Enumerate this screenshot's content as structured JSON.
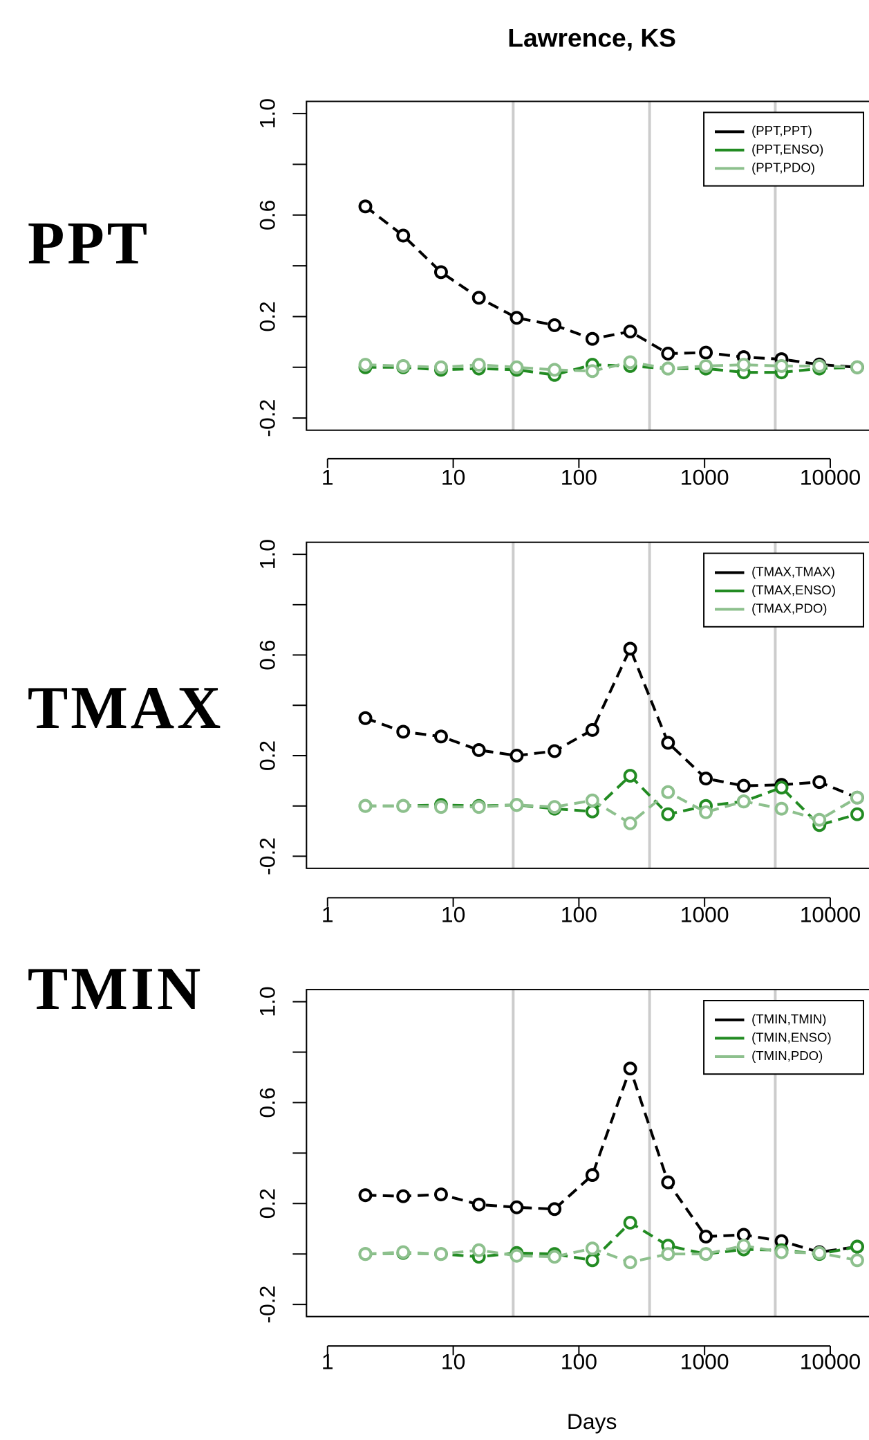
{
  "title": "Lawrence, KS",
  "x_label": "Days",
  "chart_data": [
    {
      "type": "line",
      "row_label": "PPT",
      "log_x": true,
      "legend": "topright",
      "x": [
        2,
        4,
        8,
        16,
        32,
        64,
        128,
        256,
        512,
        1024,
        2048,
        4096,
        8192,
        16384
      ],
      "xlim": [
        0.68,
        25300
      ],
      "xticks": [
        1,
        10,
        100,
        1000,
        10000
      ],
      "vlines": [
        30,
        365,
        3650
      ],
      "vline_color": "#cccccc",
      "ylim": [
        -0.248,
        1.048
      ],
      "yticks": [
        -0.2,
        0.2,
        0.6,
        {
          "value": 1,
          "label": "1.0"
        }
      ],
      "yticks_minor": [
        0,
        0.4,
        0.8
      ],
      "series": [
        {
          "name": "(PPT,PPT)",
          "color": "#000000",
          "values": [
            0.634,
            0.519,
            0.375,
            0.274,
            0.195,
            0.166,
            0.112,
            0.141,
            0.054,
            0.058,
            0.04,
            0.032,
            0.011,
            0
          ]
        },
        {
          "name": "(PPT,ENSO)",
          "color": "#228b22",
          "values": [
            0,
            0,
            -0.01,
            -0.005,
            -0.01,
            -0.03,
            0.01,
            0.005,
            -0.005,
            -0.005,
            -0.02,
            -0.02,
            -0.005,
            0
          ]
        },
        {
          "name": "(PPT,PDO)",
          "color": "#8dc08d",
          "values": [
            0.01,
            0.005,
            0,
            0.01,
            0,
            -0.01,
            -0.015,
            0.02,
            -0.005,
            0.005,
            0.01,
            0.005,
            0.005,
            0
          ]
        }
      ]
    },
    {
      "type": "line",
      "row_label": "TMAX",
      "log_x": true,
      "legend": "topright",
      "x": [
        2,
        4,
        8,
        16,
        32,
        64,
        128,
        256,
        512,
        1024,
        2048,
        4096,
        8192,
        16384
      ],
      "xlim": [
        0.68,
        25300
      ],
      "xticks": [
        1,
        10,
        100,
        1000,
        10000
      ],
      "vlines": [
        30,
        365,
        3650
      ],
      "vline_color": "#cccccc",
      "ylim": [
        -0.248,
        1.048
      ],
      "yticks": [
        -0.2,
        0.2,
        0.6,
        {
          "value": 1,
          "label": "1.0"
        }
      ],
      "yticks_minor": [
        0,
        0.4,
        0.8
      ],
      "series": [
        {
          "name": "(TMAX,TMAX)",
          "color": "#000000",
          "values": [
            0.349,
            0.295,
            0.276,
            0.222,
            0.2,
            0.218,
            0.302,
            0.625,
            0.251,
            0.109,
            0.08,
            0.084,
            0.095,
            0.033
          ]
        },
        {
          "name": "(TMAX,ENSO)",
          "color": "#228b22",
          "values": [
            0,
            0,
            0.004,
            0,
            0.004,
            -0.011,
            -0.022,
            0.12,
            -0.033,
            0,
            0.018,
            0.073,
            -0.076,
            -0.033
          ]
        },
        {
          "name": "(TMAX,PDO)",
          "color": "#8dc08d",
          "values": [
            0,
            0,
            -0.004,
            -0.004,
            0.004,
            -0.004,
            0.022,
            -0.069,
            0.055,
            -0.025,
            0.018,
            -0.011,
            -0.055,
            0.033
          ]
        }
      ]
    },
    {
      "type": "line",
      "row_label": "TMIN",
      "log_x": true,
      "legend": "topright",
      "x": [
        2,
        4,
        8,
        16,
        32,
        64,
        128,
        256,
        512,
        1024,
        2048,
        4096,
        8192,
        16384
      ],
      "xlim": [
        0.68,
        25300
      ],
      "xticks": [
        1,
        10,
        100,
        1000,
        10000
      ],
      "vlines": [
        30,
        365,
        3650
      ],
      "vline_color": "#cccccc",
      "ylim": [
        -0.248,
        1.048
      ],
      "yticks": [
        -0.2,
        0.2,
        0.6,
        {
          "value": 1,
          "label": "1.0"
        }
      ],
      "yticks_minor": [
        0,
        0.4,
        0.8
      ],
      "series": [
        {
          "name": "(TMIN,TMIN)",
          "color": "#000000",
          "values": [
            0.233,
            0.229,
            0.236,
            0.196,
            0.185,
            0.178,
            0.313,
            0.735,
            0.284,
            0.069,
            0.076,
            0.051,
            0.007,
            0.029
          ]
        },
        {
          "name": "(TMIN,ENSO)",
          "color": "#228b22",
          "values": [
            0,
            0.004,
            0,
            -0.011,
            0.004,
            0,
            -0.025,
            0.124,
            0.033,
            0,
            0.018,
            0.015,
            0,
            0.029
          ]
        },
        {
          "name": "(TMIN,PDO)",
          "color": "#8dc08d",
          "values": [
            0,
            0.007,
            0,
            0.015,
            -0.007,
            -0.011,
            0.022,
            -0.033,
            0,
            0,
            0.033,
            0.007,
            0.004,
            -0.025
          ]
        }
      ]
    }
  ]
}
